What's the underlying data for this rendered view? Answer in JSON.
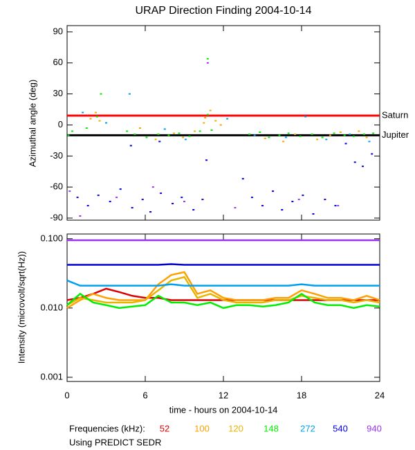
{
  "chart_data": [
    {
      "type": "scatter",
      "title": "URAP Direction Finding  2004-10-14",
      "y_label": "Azimuthal angle (deg)",
      "xlim": [
        0,
        24
      ],
      "xticks": [
        0,
        6,
        12,
        18,
        24
      ],
      "ylim": [
        -92,
        96
      ],
      "yticks": [
        90,
        60,
        30,
        0,
        -30,
        -60,
        -90
      ],
      "reference_lines": [
        {
          "name": "Saturn",
          "value": 9,
          "color": "#ff0000"
        },
        {
          "name": "Jupiter",
          "value": -10,
          "color": "#000000"
        }
      ],
      "series": [
        {
          "color": "#00ee00",
          "x": [
            0.1,
            0.4,
            1.5,
            2.3,
            4.6,
            5.2,
            6.1,
            7.0,
            7.8,
            8.6,
            9.4,
            10.2,
            10.8,
            11.1,
            14.0,
            14.8,
            15.5,
            16.3,
            17.0,
            17.9,
            18.8,
            19.6,
            20.5,
            21.3,
            22.0,
            22.8,
            23.5,
            10.8,
            2.6
          ],
          "values": [
            -10,
            -6,
            -3,
            8,
            -6,
            -9,
            -12,
            -9,
            -10,
            -8,
            -11,
            -6,
            10,
            -5,
            -9,
            -7,
            -12,
            -10,
            -8,
            -11,
            -9,
            -12,
            -8,
            -10,
            -11,
            -9,
            -8,
            64,
            30
          ]
        },
        {
          "color": "#e8b400",
          "x": [
            2.2,
            2.5,
            6.8,
            8.2,
            9.8,
            10.5,
            11.0,
            11.4,
            15.2,
            17.5,
            19.2,
            21.0,
            23.0
          ],
          "values": [
            12,
            4,
            -14,
            -8,
            -6,
            2,
            14,
            4,
            -13,
            -9,
            -14,
            -7,
            -12
          ]
        },
        {
          "color": "#ffa000",
          "x": [
            1.8,
            5.6,
            8.9,
            10.6,
            11.8,
            16.6,
            20.2,
            22.4
          ],
          "values": [
            6,
            -3,
            -12,
            7,
            0,
            -16,
            -10,
            -6
          ]
        },
        {
          "color": "#00a0ee",
          "x": [
            1.2,
            3.0,
            4.8,
            7.5,
            9.1,
            12.3,
            14.4,
            16.8,
            18.3,
            19.9,
            21.7,
            23.2
          ],
          "values": [
            12,
            2,
            30,
            -4,
            -14,
            6,
            -10,
            -12,
            8,
            -14,
            -9,
            -16
          ]
        },
        {
          "color": "#0000dd",
          "x": [
            0.8,
            1.6,
            2.4,
            3.3,
            4.1,
            5.0,
            5.8,
            6.4,
            7.2,
            8.1,
            8.8,
            9.7,
            10.4,
            10.7,
            13.5,
            14.2,
            15.0,
            15.8,
            16.5,
            17.3,
            18.1,
            18.9,
            19.8,
            20.6,
            21.4,
            22.1,
            22.7,
            23.4,
            4.9,
            7.1
          ],
          "values": [
            -70,
            -78,
            -68,
            -74,
            -62,
            -80,
            -72,
            -84,
            -66,
            -76,
            -70,
            -82,
            -72,
            -34,
            -52,
            -70,
            -78,
            -64,
            -82,
            -74,
            -68,
            -86,
            -72,
            -78,
            -18,
            -36,
            -40,
            -28,
            -20,
            -16
          ]
        },
        {
          "color": "#9933ee",
          "x": [
            0.2,
            1.0,
            3.8,
            6.6,
            9.0,
            10.8,
            12.9,
            17.8,
            20.8
          ],
          "values": [
            -64,
            -88,
            -70,
            -60,
            -74,
            60,
            -80,
            -72,
            -78
          ]
        }
      ]
    },
    {
      "type": "line",
      "y_label": "Intensity (microvolt/sqrt(Hz))",
      "x_label": "time - hours on 2004-10-14",
      "legend_title": "Frequencies (kHz):",
      "footnote": "Using PREDICT SEDR",
      "log_scale": true,
      "xlim": [
        0,
        24
      ],
      "xticks": [
        0,
        6,
        12,
        18,
        24
      ],
      "ylim": [
        0.00087,
        0.117
      ],
      "yticks": [
        {
          "value": 0.1,
          "label": "0.100"
        },
        {
          "value": 0.01,
          "label": "0.010"
        },
        {
          "value": 0.001,
          "label": "0.001"
        }
      ],
      "x": [
        0,
        1,
        2,
        3,
        4,
        5,
        6,
        7,
        8,
        9,
        10,
        11,
        12,
        13,
        14,
        15,
        16,
        17,
        18,
        19,
        20,
        21,
        22,
        23,
        24
      ],
      "series": [
        {
          "name": "52",
          "color": "#dd0000",
          "values": [
            0.013,
            0.014,
            0.016,
            0.019,
            0.017,
            0.015,
            0.014,
            0.014,
            0.013,
            0.013,
            0.013,
            0.013,
            0.013,
            0.013,
            0.013,
            0.013,
            0.013,
            0.013,
            0.013,
            0.013,
            0.013,
            0.013,
            0.013,
            0.013,
            0.013
          ]
        },
        {
          "name": "100",
          "color": "#ffa000",
          "values": [
            0.01,
            0.013,
            0.016,
            0.014,
            0.013,
            0.013,
            0.013,
            0.022,
            0.03,
            0.033,
            0.016,
            0.018,
            0.014,
            0.013,
            0.013,
            0.013,
            0.014,
            0.014,
            0.018,
            0.016,
            0.014,
            0.014,
            0.013,
            0.015,
            0.013
          ]
        },
        {
          "name": "120",
          "color": "#e8b400",
          "values": [
            0.011,
            0.014,
            0.013,
            0.012,
            0.012,
            0.012,
            0.013,
            0.018,
            0.025,
            0.028,
            0.014,
            0.016,
            0.013,
            0.012,
            0.012,
            0.012,
            0.013,
            0.013,
            0.015,
            0.014,
            0.013,
            0.013,
            0.012,
            0.013,
            0.012
          ]
        },
        {
          "name": "148",
          "color": "#00ee00",
          "values": [
            0.011,
            0.016,
            0.012,
            0.011,
            0.01,
            0.0105,
            0.011,
            0.015,
            0.012,
            0.012,
            0.011,
            0.012,
            0.01,
            0.011,
            0.011,
            0.0105,
            0.011,
            0.012,
            0.016,
            0.012,
            0.011,
            0.011,
            0.01,
            0.011,
            0.0105
          ]
        },
        {
          "name": "272",
          "color": "#00a0ee",
          "values": [
            0.025,
            0.021,
            0.021,
            0.021,
            0.021,
            0.021,
            0.021,
            0.021,
            0.022,
            0.021,
            0.021,
            0.021,
            0.021,
            0.021,
            0.021,
            0.021,
            0.021,
            0.021,
            0.022,
            0.021,
            0.021,
            0.021,
            0.021,
            0.021,
            0.021
          ]
        },
        {
          "name": "540",
          "color": "#0000dd",
          "values": [
            0.042,
            0.042,
            0.042,
            0.042,
            0.042,
            0.042,
            0.042,
            0.042,
            0.043,
            0.042,
            0.042,
            0.042,
            0.042,
            0.042,
            0.042,
            0.042,
            0.042,
            0.042,
            0.042,
            0.042,
            0.042,
            0.042,
            0.042,
            0.042,
            0.042
          ]
        },
        {
          "name": "940",
          "color": "#9933ee",
          "values": [
            0.095,
            0.095,
            0.095,
            0.095,
            0.095,
            0.095,
            0.095,
            0.095,
            0.095,
            0.095,
            0.095,
            0.095,
            0.095,
            0.095,
            0.095,
            0.095,
            0.095,
            0.095,
            0.095,
            0.095,
            0.095,
            0.095,
            0.095,
            0.095,
            0.095
          ]
        }
      ]
    }
  ]
}
